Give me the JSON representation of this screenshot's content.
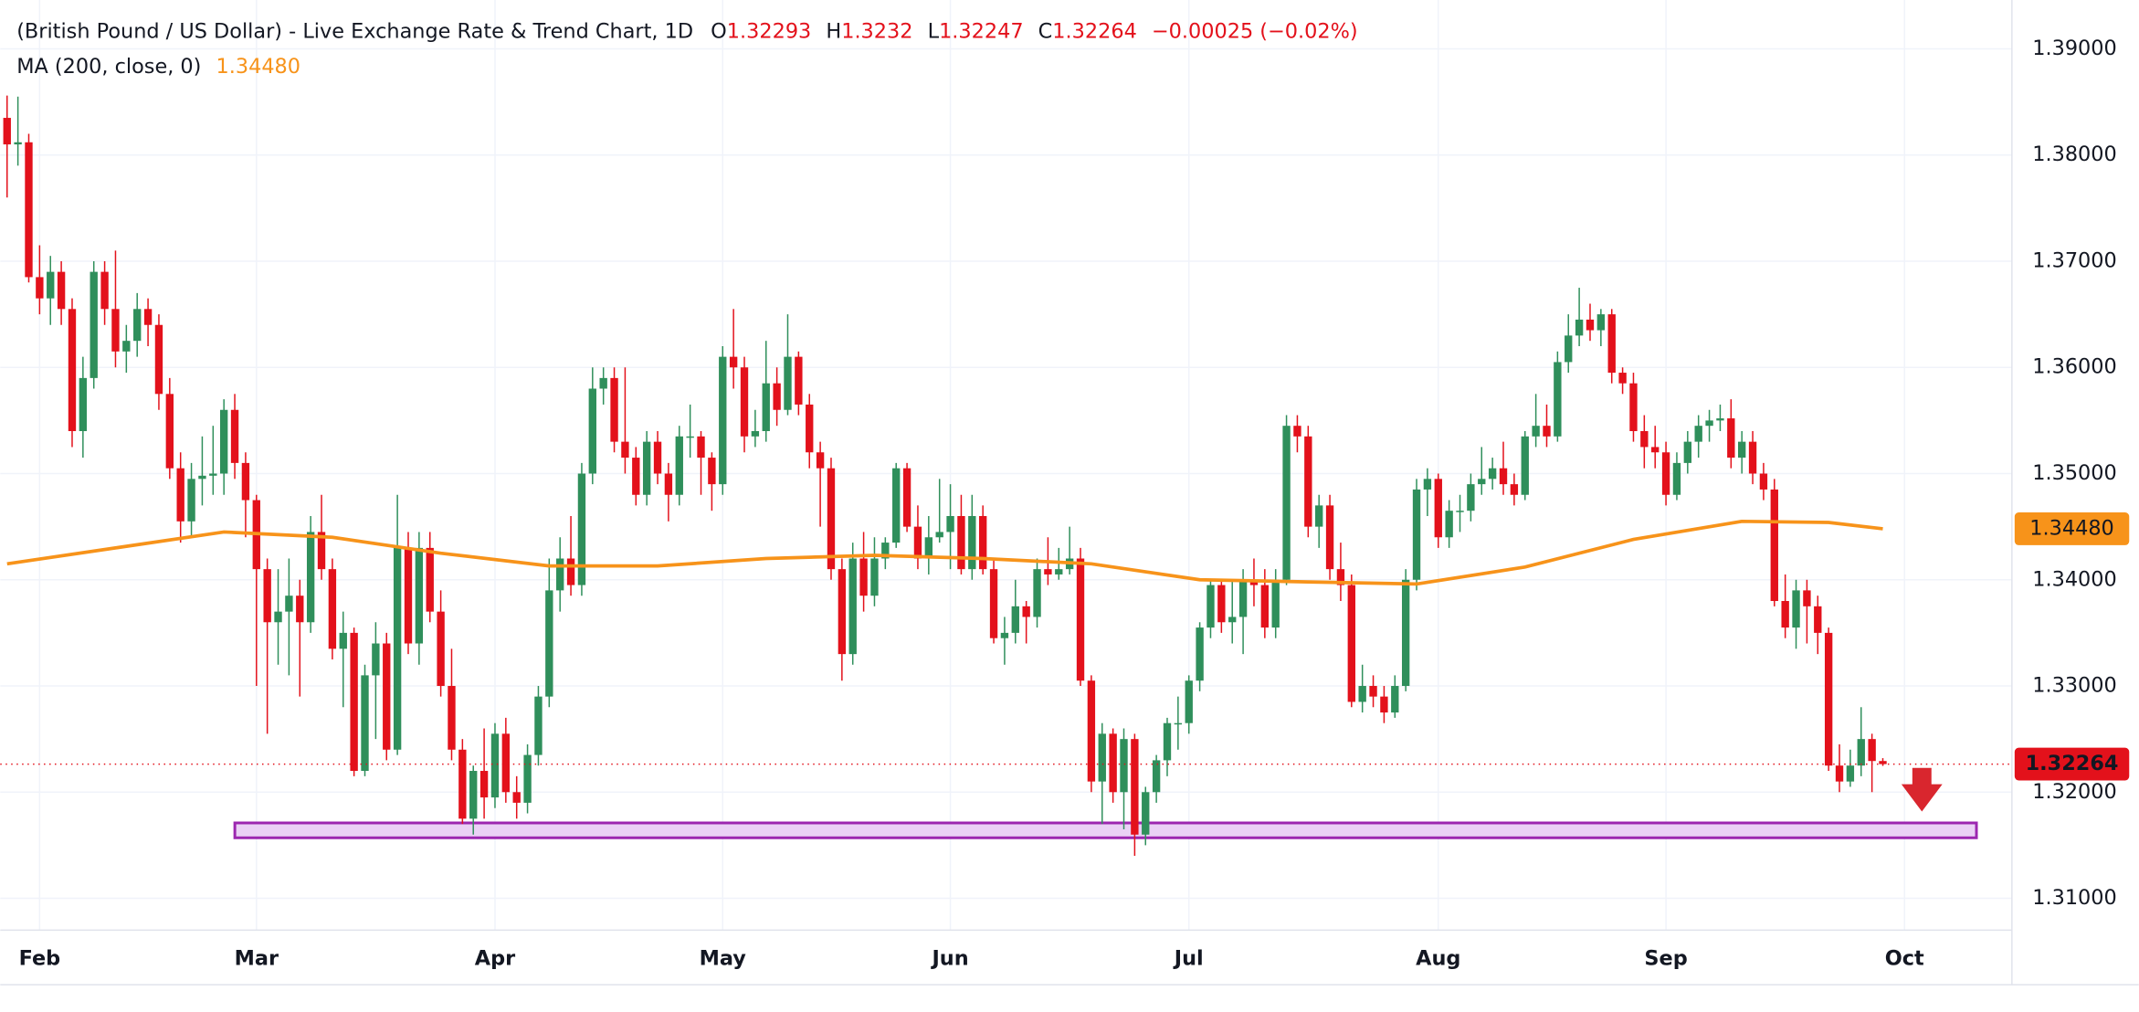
{
  "chart_data": {
    "type": "candlestick",
    "title": "(British Pound / US Dollar) - Live Exchange Rate & Trend Chart, 1D",
    "ohlc_labels": [
      "O",
      "H",
      "L",
      "C"
    ],
    "change_label": "−0.00025 (−0.02%)",
    "up_color": "#2f8f5b",
    "down_color": "#e3111b",
    "ylim": [
      1.307,
      1.3946
    ],
    "yticks": [
      {
        "value": 1.31,
        "label": "1.31000"
      },
      {
        "value": 1.32,
        "label": "1.32000"
      },
      {
        "value": 1.33,
        "label": "1.33000"
      },
      {
        "value": 1.34,
        "label": "1.34000"
      },
      {
        "value": 1.35,
        "label": "1.35000"
      },
      {
        "value": 1.36,
        "label": "1.36000"
      },
      {
        "value": 1.37,
        "label": "1.37000"
      },
      {
        "value": 1.38,
        "label": "1.38000"
      },
      {
        "value": 1.39,
        "label": "1.39000"
      }
    ],
    "xticks": [
      {
        "value": 3,
        "label": "Feb"
      },
      {
        "value": 23,
        "label": "Mar"
      },
      {
        "value": 45,
        "label": "Apr"
      },
      {
        "value": 66,
        "label": "May"
      },
      {
        "value": 87,
        "label": "Jun"
      },
      {
        "value": 109,
        "label": "Jul"
      },
      {
        "value": 132,
        "label": "Aug"
      },
      {
        "value": 153,
        "label": "Sep"
      },
      {
        "value": 175,
        "label": "Oct"
      }
    ],
    "grid": true,
    "support_zone": [
      1.3157,
      1.3171
    ],
    "ma": {
      "name": "MA (200, close, 0)",
      "color": "#f7931a",
      "last_label": "1.34480",
      "x": [
        0,
        10,
        20,
        30,
        40,
        50,
        60,
        70,
        80,
        90,
        100,
        110,
        120,
        130,
        140,
        150,
        160,
        168,
        173
      ],
      "values": [
        1.3415,
        1.343,
        1.3445,
        1.344,
        1.3425,
        1.3413,
        1.3413,
        1.342,
        1.3423,
        1.342,
        1.3415,
        1.34,
        1.3398,
        1.3396,
        1.3412,
        1.3438,
        1.3455,
        1.3454,
        1.3448
      ]
    },
    "candles": [
      [
        1.3835,
        1.3856,
        1.376,
        1.381
      ],
      [
        1.381,
        1.3855,
        1.379,
        1.3812
      ],
      [
        1.3812,
        1.382,
        1.368,
        1.3685
      ],
      [
        1.3685,
        1.3715,
        1.365,
        1.3665
      ],
      [
        1.3665,
        1.3705,
        1.364,
        1.369
      ],
      [
        1.369,
        1.37,
        1.364,
        1.3655
      ],
      [
        1.3655,
        1.3665,
        1.3525,
        1.354
      ],
      [
        1.354,
        1.361,
        1.3515,
        1.359
      ],
      [
        1.359,
        1.37,
        1.358,
        1.369
      ],
      [
        1.369,
        1.37,
        1.364,
        1.3655
      ],
      [
        1.3655,
        1.371,
        1.36,
        1.3615
      ],
      [
        1.3615,
        1.364,
        1.3595,
        1.3625
      ],
      [
        1.3625,
        1.367,
        1.361,
        1.3655
      ],
      [
        1.3655,
        1.3665,
        1.362,
        1.364
      ],
      [
        1.364,
        1.365,
        1.356,
        1.3575
      ],
      [
        1.3575,
        1.359,
        1.3495,
        1.3505
      ],
      [
        1.3505,
        1.352,
        1.3435,
        1.3455
      ],
      [
        1.3455,
        1.351,
        1.344,
        1.3495
      ],
      [
        1.3495,
        1.3535,
        1.347,
        1.3498
      ],
      [
        1.3498,
        1.3545,
        1.348,
        1.35
      ],
      [
        1.35,
        1.357,
        1.348,
        1.356
      ],
      [
        1.356,
        1.3575,
        1.3495,
        1.351
      ],
      [
        1.351,
        1.352,
        1.344,
        1.3475
      ],
      [
        1.3475,
        1.348,
        1.33,
        1.341
      ],
      [
        1.341,
        1.342,
        1.3255,
        1.336
      ],
      [
        1.336,
        1.341,
        1.332,
        1.337
      ],
      [
        1.337,
        1.342,
        1.331,
        1.3385
      ],
      [
        1.3385,
        1.34,
        1.329,
        1.336
      ],
      [
        1.336,
        1.346,
        1.335,
        1.3445
      ],
      [
        1.3445,
        1.348,
        1.34,
        1.341
      ],
      [
        1.341,
        1.342,
        1.3325,
        1.3335
      ],
      [
        1.3335,
        1.337,
        1.328,
        1.335
      ],
      [
        1.335,
        1.3355,
        1.3215,
        1.322
      ],
      [
        1.322,
        1.332,
        1.3215,
        1.331
      ],
      [
        1.331,
        1.336,
        1.325,
        1.334
      ],
      [
        1.334,
        1.335,
        1.323,
        1.324
      ],
      [
        1.324,
        1.348,
        1.3235,
        1.343
      ],
      [
        1.343,
        1.3445,
        1.333,
        1.334
      ],
      [
        1.334,
        1.3445,
        1.332,
        1.343
      ],
      [
        1.343,
        1.3445,
        1.336,
        1.337
      ],
      [
        1.337,
        1.339,
        1.329,
        1.33
      ],
      [
        1.33,
        1.3335,
        1.323,
        1.324
      ],
      [
        1.324,
        1.325,
        1.317,
        1.3175
      ],
      [
        1.3175,
        1.3225,
        1.316,
        1.322
      ],
      [
        1.322,
        1.326,
        1.3175,
        1.3195
      ],
      [
        1.3195,
        1.3265,
        1.3185,
        1.3255
      ],
      [
        1.3255,
        1.327,
        1.319,
        1.32
      ],
      [
        1.32,
        1.3215,
        1.3175,
        1.319
      ],
      [
        1.319,
        1.3245,
        1.318,
        1.3235
      ],
      [
        1.3235,
        1.33,
        1.3225,
        1.329
      ],
      [
        1.329,
        1.342,
        1.328,
        1.339
      ],
      [
        1.339,
        1.344,
        1.337,
        1.342
      ],
      [
        1.342,
        1.346,
        1.3385,
        1.3395
      ],
      [
        1.3395,
        1.351,
        1.3385,
        1.35
      ],
      [
        1.35,
        1.36,
        1.349,
        1.358
      ],
      [
        1.358,
        1.36,
        1.3565,
        1.359
      ],
      [
        1.359,
        1.36,
        1.352,
        1.353
      ],
      [
        1.353,
        1.36,
        1.35,
        1.3515
      ],
      [
        1.3515,
        1.3525,
        1.347,
        1.348
      ],
      [
        1.348,
        1.354,
        1.347,
        1.353
      ],
      [
        1.353,
        1.354,
        1.349,
        1.35
      ],
      [
        1.35,
        1.351,
        1.3455,
        1.348
      ],
      [
        1.348,
        1.3545,
        1.347,
        1.3535
      ],
      [
        1.3535,
        1.3565,
        1.3515,
        1.3535
      ],
      [
        1.3535,
        1.354,
        1.348,
        1.3515
      ],
      [
        1.3515,
        1.352,
        1.3465,
        1.349
      ],
      [
        1.349,
        1.362,
        1.348,
        1.361
      ],
      [
        1.361,
        1.3655,
        1.358,
        1.36
      ],
      [
        1.36,
        1.361,
        1.352,
        1.3535
      ],
      [
        1.3535,
        1.356,
        1.3525,
        1.354
      ],
      [
        1.354,
        1.3625,
        1.353,
        1.3585
      ],
      [
        1.3585,
        1.36,
        1.3545,
        1.356
      ],
      [
        1.356,
        1.365,
        1.3555,
        1.361
      ],
      [
        1.361,
        1.3615,
        1.3555,
        1.3565
      ],
      [
        1.3565,
        1.3575,
        1.3505,
        1.352
      ],
      [
        1.352,
        1.353,
        1.345,
        1.3505
      ],
      [
        1.3505,
        1.3515,
        1.34,
        1.341
      ],
      [
        1.341,
        1.342,
        1.3305,
        1.333
      ],
      [
        1.333,
        1.3435,
        1.332,
        1.342
      ],
      [
        1.342,
        1.3445,
        1.337,
        1.3385
      ],
      [
        1.3385,
        1.344,
        1.3375,
        1.342
      ],
      [
        1.342,
        1.344,
        1.341,
        1.3435
      ],
      [
        1.3435,
        1.351,
        1.343,
        1.3505
      ],
      [
        1.3505,
        1.351,
        1.3445,
        1.345
      ],
      [
        1.345,
        1.347,
        1.341,
        1.342
      ],
      [
        1.342,
        1.346,
        1.3405,
        1.344
      ],
      [
        1.344,
        1.3495,
        1.3435,
        1.3445
      ],
      [
        1.3445,
        1.349,
        1.341,
        1.346
      ],
      [
        1.346,
        1.348,
        1.3405,
        1.341
      ],
      [
        1.341,
        1.348,
        1.34,
        1.346
      ],
      [
        1.346,
        1.347,
        1.3405,
        1.341
      ],
      [
        1.341,
        1.342,
        1.334,
        1.3345
      ],
      [
        1.3345,
        1.3365,
        1.332,
        1.335
      ],
      [
        1.335,
        1.34,
        1.334,
        1.3375
      ],
      [
        1.3375,
        1.338,
        1.334,
        1.3365
      ],
      [
        1.3365,
        1.342,
        1.3355,
        1.341
      ],
      [
        1.341,
        1.344,
        1.3395,
        1.3405
      ],
      [
        1.3405,
        1.343,
        1.34,
        1.341
      ],
      [
        1.341,
        1.345,
        1.3405,
        1.342
      ],
      [
        1.342,
        1.343,
        1.33,
        1.3305
      ],
      [
        1.3305,
        1.331,
        1.32,
        1.321
      ],
      [
        1.321,
        1.3265,
        1.317,
        1.3255
      ],
      [
        1.3255,
        1.326,
        1.319,
        1.32
      ],
      [
        1.32,
        1.326,
        1.3165,
        1.325
      ],
      [
        1.325,
        1.3255,
        1.314,
        1.316
      ],
      [
        1.316,
        1.3205,
        1.315,
        1.32
      ],
      [
        1.32,
        1.3235,
        1.319,
        1.323
      ],
      [
        1.323,
        1.327,
        1.3215,
        1.3265
      ],
      [
        1.3265,
        1.329,
        1.324,
        1.3265
      ],
      [
        1.3265,
        1.331,
        1.3255,
        1.3305
      ],
      [
        1.3305,
        1.336,
        1.3295,
        1.3355
      ],
      [
        1.3355,
        1.34,
        1.3345,
        1.3395
      ],
      [
        1.3395,
        1.34,
        1.335,
        1.336
      ],
      [
        1.336,
        1.34,
        1.334,
        1.3365
      ],
      [
        1.3365,
        1.341,
        1.333,
        1.34
      ],
      [
        1.34,
        1.342,
        1.3375,
        1.3395
      ],
      [
        1.3395,
        1.341,
        1.3345,
        1.3355
      ],
      [
        1.3355,
        1.341,
        1.3345,
        1.34
      ],
      [
        1.34,
        1.3555,
        1.3395,
        1.3545
      ],
      [
        1.3545,
        1.3555,
        1.352,
        1.3535
      ],
      [
        1.3535,
        1.3545,
        1.344,
        1.345
      ],
      [
        1.345,
        1.348,
        1.343,
        1.347
      ],
      [
        1.347,
        1.348,
        1.34,
        1.341
      ],
      [
        1.341,
        1.3435,
        1.338,
        1.3395
      ],
      [
        1.3395,
        1.3405,
        1.328,
        1.3285
      ],
      [
        1.3285,
        1.332,
        1.3275,
        1.33
      ],
      [
        1.33,
        1.331,
        1.328,
        1.329
      ],
      [
        1.329,
        1.33,
        1.3265,
        1.3275
      ],
      [
        1.3275,
        1.331,
        1.327,
        1.33
      ],
      [
        1.33,
        1.341,
        1.3295,
        1.34
      ],
      [
        1.34,
        1.3495,
        1.339,
        1.3485
      ],
      [
        1.3485,
        1.3505,
        1.346,
        1.3495
      ],
      [
        1.3495,
        1.35,
        1.343,
        1.344
      ],
      [
        1.344,
        1.3475,
        1.343,
        1.3465
      ],
      [
        1.3465,
        1.348,
        1.3445,
        1.3465
      ],
      [
        1.3465,
        1.35,
        1.3455,
        1.349
      ],
      [
        1.349,
        1.3525,
        1.348,
        1.3495
      ],
      [
        1.3495,
        1.3515,
        1.3485,
        1.3505
      ],
      [
        1.3505,
        1.353,
        1.348,
        1.349
      ],
      [
        1.349,
        1.35,
        1.347,
        1.348
      ],
      [
        1.348,
        1.354,
        1.3475,
        1.3535
      ],
      [
        1.3535,
        1.3575,
        1.3525,
        1.3545
      ],
      [
        1.3545,
        1.3565,
        1.3525,
        1.3535
      ],
      [
        1.3535,
        1.3615,
        1.353,
        1.3605
      ],
      [
        1.3605,
        1.365,
        1.3595,
        1.363
      ],
      [
        1.363,
        1.3675,
        1.362,
        1.3645
      ],
      [
        1.3645,
        1.366,
        1.3625,
        1.3635
      ],
      [
        1.3635,
        1.3655,
        1.362,
        1.365
      ],
      [
        1.365,
        1.3655,
        1.3585,
        1.3595
      ],
      [
        1.3595,
        1.36,
        1.3575,
        1.3585
      ],
      [
        1.3585,
        1.3595,
        1.353,
        1.354
      ],
      [
        1.354,
        1.3555,
        1.3505,
        1.3525
      ],
      [
        1.3525,
        1.3545,
        1.3505,
        1.352
      ],
      [
        1.352,
        1.353,
        1.347,
        1.348
      ],
      [
        1.348,
        1.352,
        1.3475,
        1.351
      ],
      [
        1.351,
        1.354,
        1.35,
        1.353
      ],
      [
        1.353,
        1.3555,
        1.3515,
        1.3545
      ],
      [
        1.3545,
        1.356,
        1.353,
        1.355
      ],
      [
        1.355,
        1.3565,
        1.354,
        1.3552
      ],
      [
        1.3552,
        1.357,
        1.3505,
        1.3515
      ],
      [
        1.3515,
        1.354,
        1.35,
        1.353
      ],
      [
        1.353,
        1.354,
        1.349,
        1.35
      ],
      [
        1.35,
        1.351,
        1.3475,
        1.3485
      ],
      [
        1.3485,
        1.3495,
        1.3375,
        1.338
      ],
      [
        1.338,
        1.3405,
        1.3345,
        1.3355
      ],
      [
        1.3355,
        1.34,
        1.3335,
        1.339
      ],
      [
        1.339,
        1.34,
        1.334,
        1.3375
      ],
      [
        1.3375,
        1.3385,
        1.333,
        1.335
      ],
      [
        1.335,
        1.3355,
        1.322,
        1.3225
      ],
      [
        1.3225,
        1.3245,
        1.32,
        1.321
      ],
      [
        1.321,
        1.324,
        1.3205,
        1.3225
      ],
      [
        1.3225,
        1.328,
        1.3215,
        1.325
      ],
      [
        1.325,
        1.3255,
        1.32,
        1.32293
      ],
      [
        1.32293,
        1.3232,
        1.32247,
        1.32264
      ]
    ]
  }
}
